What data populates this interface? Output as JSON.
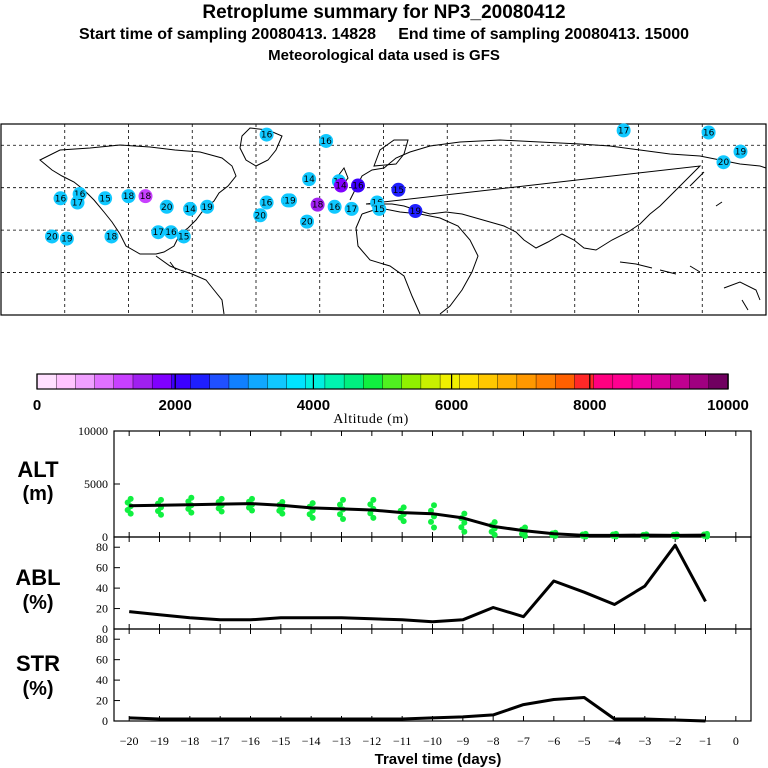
{
  "header": {
    "title": "Retroplume summary for NP3_20080412",
    "sampling_line": "Start time of sampling 20080413. 14828     End time of sampling 20080413. 15000",
    "met_line": "Meteorological data used is GFS"
  },
  "colorbar": {
    "label": "Altitude (m)",
    "ticks": [
      "0",
      "2000",
      "4000",
      "6000",
      "8000",
      "10000"
    ],
    "colors": [
      "#ffe0ff",
      "#ffc4ff",
      "#f0a0ff",
      "#e070ff",
      "#c840ff",
      "#a020f0",
      "#8000ff",
      "#3c00ff",
      "#1f1fff",
      "#2050ff",
      "#1080ff",
      "#10a8ff",
      "#10c8ff",
      "#00e4ff",
      "#00f0e0",
      "#00f4b0",
      "#00f080",
      "#10f040",
      "#50f020",
      "#90f000",
      "#c8f000",
      "#f0f000",
      "#ffe000",
      "#ffc800",
      "#ffb000",
      "#ff9800",
      "#ff8000",
      "#ff6000",
      "#ff2828",
      "#ff0080",
      "#ff0090",
      "#f000a0",
      "#d8009a",
      "#c00090",
      "#a00080",
      "#700060"
    ]
  },
  "map": {
    "markers": [
      {
        "label": "16",
        "lon": -55,
        "lat": 75,
        "color": "#10c8ff"
      },
      {
        "label": "16",
        "lon": -27,
        "lat": 72,
        "color": "#10c8ff"
      },
      {
        "label": "17",
        "lon": 113,
        "lat": 77,
        "color": "#10c8ff"
      },
      {
        "label": "16",
        "lon": 153,
        "lat": 76,
        "color": "#10c8ff"
      },
      {
        "label": "19",
        "lon": 168,
        "lat": 67,
        "color": "#10c8ff"
      },
      {
        "label": "20",
        "lon": 160,
        "lat": 62,
        "color": "#10c8ff"
      },
      {
        "label": "14",
        "lon": -35,
        "lat": 54,
        "color": "#10c8ff"
      },
      {
        "label": "15",
        "lon": -21,
        "lat": 53,
        "color": "#10c8ff"
      },
      {
        "label": "16",
        "lon": -152,
        "lat": 45,
        "color": "#10c8ff"
      },
      {
        "label": "16",
        "lon": -143,
        "lat": 47,
        "color": "#10c8ff"
      },
      {
        "label": "15",
        "lon": -131,
        "lat": 45,
        "color": "#10c8ff"
      },
      {
        "label": "18",
        "lon": -120,
        "lat": 46,
        "color": "#10c8ff"
      },
      {
        "label": "17",
        "lon": -144,
        "lat": 43,
        "color": "#10c8ff"
      },
      {
        "label": "20",
        "lon": -102,
        "lat": 41,
        "color": "#10c8ff"
      },
      {
        "label": "14",
        "lon": -91,
        "lat": 40,
        "color": "#10c8ff"
      },
      {
        "label": "19",
        "lon": -83,
        "lat": 41,
        "color": "#10c8ff"
      },
      {
        "label": "16",
        "lon": -55,
        "lat": 43,
        "color": "#10c8ff"
      },
      {
        "label": "16",
        "lon": -45,
        "lat": 44,
        "color": "#10c8ff"
      },
      {
        "label": "20",
        "lon": -58,
        "lat": 37,
        "color": "#10c8ff"
      },
      {
        "label": "19",
        "lon": -44,
        "lat": 44,
        "color": "#10c8ff"
      },
      {
        "label": "20",
        "lon": -36,
        "lat": 34,
        "color": "#10c8ff"
      },
      {
        "label": "16",
        "lon": -23,
        "lat": 41,
        "color": "#10c8ff"
      },
      {
        "label": "17",
        "lon": -15,
        "lat": 40,
        "color": "#10c8ff"
      },
      {
        "label": "16",
        "lon": -3,
        "lat": 43,
        "color": "#10c8ff"
      },
      {
        "label": "15",
        "lon": -2,
        "lat": 40,
        "color": "#10c8ff"
      },
      {
        "label": "20",
        "lon": -156,
        "lat": 27,
        "color": "#10c8ff"
      },
      {
        "label": "19",
        "lon": -149,
        "lat": 26,
        "color": "#10c8ff"
      },
      {
        "label": "18",
        "lon": -128,
        "lat": 27,
        "color": "#10c8ff"
      },
      {
        "label": "17",
        "lon": -106,
        "lat": 29,
        "color": "#10c8ff"
      },
      {
        "label": "16",
        "lon": -100,
        "lat": 29,
        "color": "#10c8ff"
      },
      {
        "label": "15",
        "lon": -94,
        "lat": 27,
        "color": "#10c8ff"
      },
      {
        "label": "14",
        "lon": -20,
        "lat": 51,
        "color": "#8000ff"
      },
      {
        "label": "15",
        "lon": 7,
        "lat": 49,
        "color": "#1f1fff"
      },
      {
        "label": "19",
        "lon": 15,
        "lat": 39,
        "color": "#1f1fff"
      },
      {
        "label": "16",
        "lon": -12,
        "lat": 51,
        "color": "#3c00ff"
      },
      {
        "label": "18",
        "lon": -112,
        "lat": 46,
        "color": "#c840ff"
      },
      {
        "label": "18",
        "lon": -31,
        "lat": 42,
        "color": "#a020f0"
      }
    ]
  },
  "chart_data": [
    {
      "type": "line",
      "title": "ALT",
      "ylabel": "ALT (m)",
      "unit_label": "(m)",
      "ylim": [
        0,
        10000
      ],
      "yticks": [
        "10000",
        "5000",
        "0"
      ],
      "x": [
        -20,
        -19,
        -18,
        -17,
        -16,
        -15,
        -14,
        -13,
        -12,
        -11,
        -10,
        -9,
        -8,
        -7,
        -6,
        -5,
        -4,
        -3,
        -2,
        -1
      ],
      "values": [
        2950,
        3000,
        3050,
        3100,
        3150,
        3000,
        2750,
        2650,
        2550,
        2300,
        2200,
        1800,
        1000,
        600,
        300,
        150,
        150,
        180,
        150,
        180
      ],
      "scatter_color": "#10f040",
      "scatter_ranges": [
        [
          2200,
          3600
        ],
        [
          2100,
          3500
        ],
        [
          2300,
          3700
        ],
        [
          2400,
          3600
        ],
        [
          2500,
          3600
        ],
        [
          2200,
          3300
        ],
        [
          1800,
          3200
        ],
        [
          1700,
          3500
        ],
        [
          1800,
          3500
        ],
        [
          1500,
          2800
        ],
        [
          900,
          3000
        ],
        [
          500,
          2200
        ],
        [
          200,
          1400
        ],
        [
          100,
          900
        ],
        [
          100,
          400
        ],
        [
          50,
          300
        ],
        [
          50,
          300
        ],
        [
          50,
          250
        ],
        [
          50,
          250
        ],
        [
          50,
          300
        ]
      ]
    },
    {
      "type": "line",
      "title": "ABL",
      "unit_label": "(%)",
      "ylim": [
        0,
        90
      ],
      "yticks": [
        "80",
        "60",
        "40",
        "20",
        "0"
      ],
      "x": [
        -20,
        -19,
        -18,
        -17,
        -16,
        -15,
        -14,
        -13,
        -12,
        -11,
        -10,
        -9,
        -8,
        -7,
        -6,
        -5,
        -4,
        -3,
        -2,
        -1
      ],
      "values": [
        17,
        14,
        11,
        9,
        9,
        11,
        11,
        11,
        10,
        9,
        7,
        9,
        21,
        12,
        47,
        36,
        24,
        42,
        82,
        27
      ]
    },
    {
      "type": "line",
      "title": "STR",
      "unit_label": "(%)",
      "ylim": [
        0,
        90
      ],
      "yticks": [
        "80",
        "60",
        "40",
        "20",
        "0"
      ],
      "x": [
        -20,
        -19,
        -18,
        -17,
        -16,
        -15,
        -14,
        -13,
        -12,
        -11,
        -10,
        -9,
        -8,
        -7,
        -6,
        -5,
        -4,
        -3,
        -2,
        -1
      ],
      "values": [
        3,
        2,
        2,
        2,
        2,
        2,
        2,
        2,
        2,
        2,
        3,
        4,
        6,
        16,
        21,
        23,
        2,
        2,
        1,
        0
      ]
    }
  ],
  "x_axis": {
    "xlabel": "Travel time (days)",
    "ticks": [
      "−20",
      "−19",
      "−18",
      "−17",
      "−16",
      "−15",
      "−14",
      "−13",
      "−12",
      "−11",
      "−10",
      "−9",
      "−8",
      "−7",
      "−6",
      "−5",
      "−4",
      "−3",
      "−2",
      "−1",
      "0"
    ]
  }
}
